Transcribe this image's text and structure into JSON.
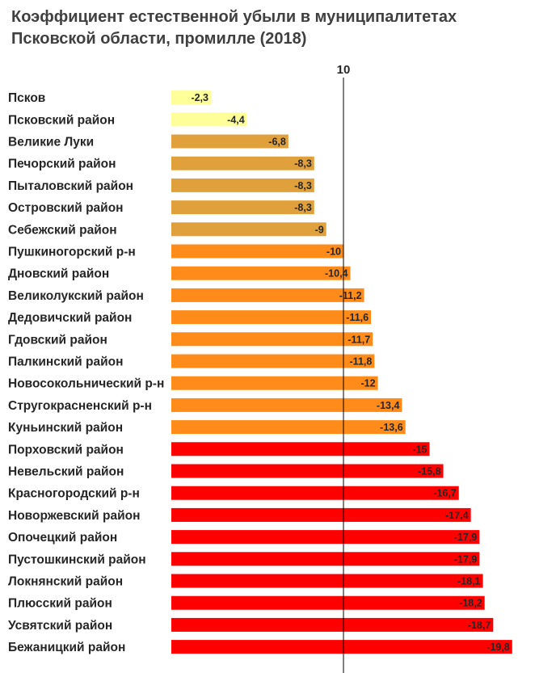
{
  "chart_data": {
    "type": "bar",
    "orientation": "horizontal",
    "title": "Коэффициент естественной убыли в муниципалитетах\nПсковской области, промилле (2018)",
    "reference_line": {
      "value": -10,
      "label": "10"
    },
    "categories": [
      "Псков",
      "Псковский район",
      "Великие Луки",
      "Печорский район",
      "Пыталовский район",
      "Островский район",
      "Себежский район",
      "Пушкиногорский р-н",
      "Дновский район",
      "Великолукский район",
      "Дедовичский район",
      "Гдовский район",
      "Палкинский район",
      "Новосокольнический р-н",
      "Стругокрасненский р-н",
      "Куньинский район",
      "Порховский район",
      "Невельский район",
      "Красногородский р-н",
      "Новоржевский район",
      "Опочецкий район",
      "Пустошкинский район",
      "Локнянский район",
      "Плюсский район",
      "Усвятский район",
      "Бежаницкий район"
    ],
    "values": [
      -2.3,
      -4.4,
      -6.8,
      -8.3,
      -8.3,
      -8.3,
      -9,
      -10,
      -10.4,
      -11.2,
      -11.6,
      -11.7,
      -11.8,
      -12,
      -13.4,
      -13.6,
      -15,
      -15.8,
      -16.7,
      -17.4,
      -17.9,
      -17.9,
      -18.1,
      -18.2,
      -18.7,
      -19.8
    ],
    "data_labels": [
      "-2,3",
      "-4,4",
      "-6,8",
      "-8,3",
      "-8,3",
      "-8,3",
      "-9",
      "-10",
      "-10,4",
      "-11,2",
      "-11,6",
      "-11,7",
      "-11,8",
      "-12",
      "-13,4",
      "-13,6",
      "-15",
      "-15,8",
      "-16,7",
      "-17,4",
      "-17,9",
      "-17,9",
      "-18,1",
      "-18,2",
      "-18,7",
      "-19,8"
    ],
    "bar_colors": [
      "#ffff99",
      "#ffff99",
      "#e0a13c",
      "#e0a13c",
      "#e0a13c",
      "#e0a13c",
      "#e0a13c",
      "#ff8c1a",
      "#ff8c1a",
      "#ff8c1a",
      "#ff8c1a",
      "#ff8c1a",
      "#ff8c1a",
      "#ff8c1a",
      "#ff8c1a",
      "#ff8c1a",
      "#ff0000",
      "#ff0000",
      "#ff0000",
      "#ff0000",
      "#ff0000",
      "#ff0000",
      "#ff0000",
      "#ff0000",
      "#ff0000",
      "#ff0000"
    ],
    "xlim": [
      0,
      -20
    ],
    "grid": false,
    "legend": "none"
  }
}
